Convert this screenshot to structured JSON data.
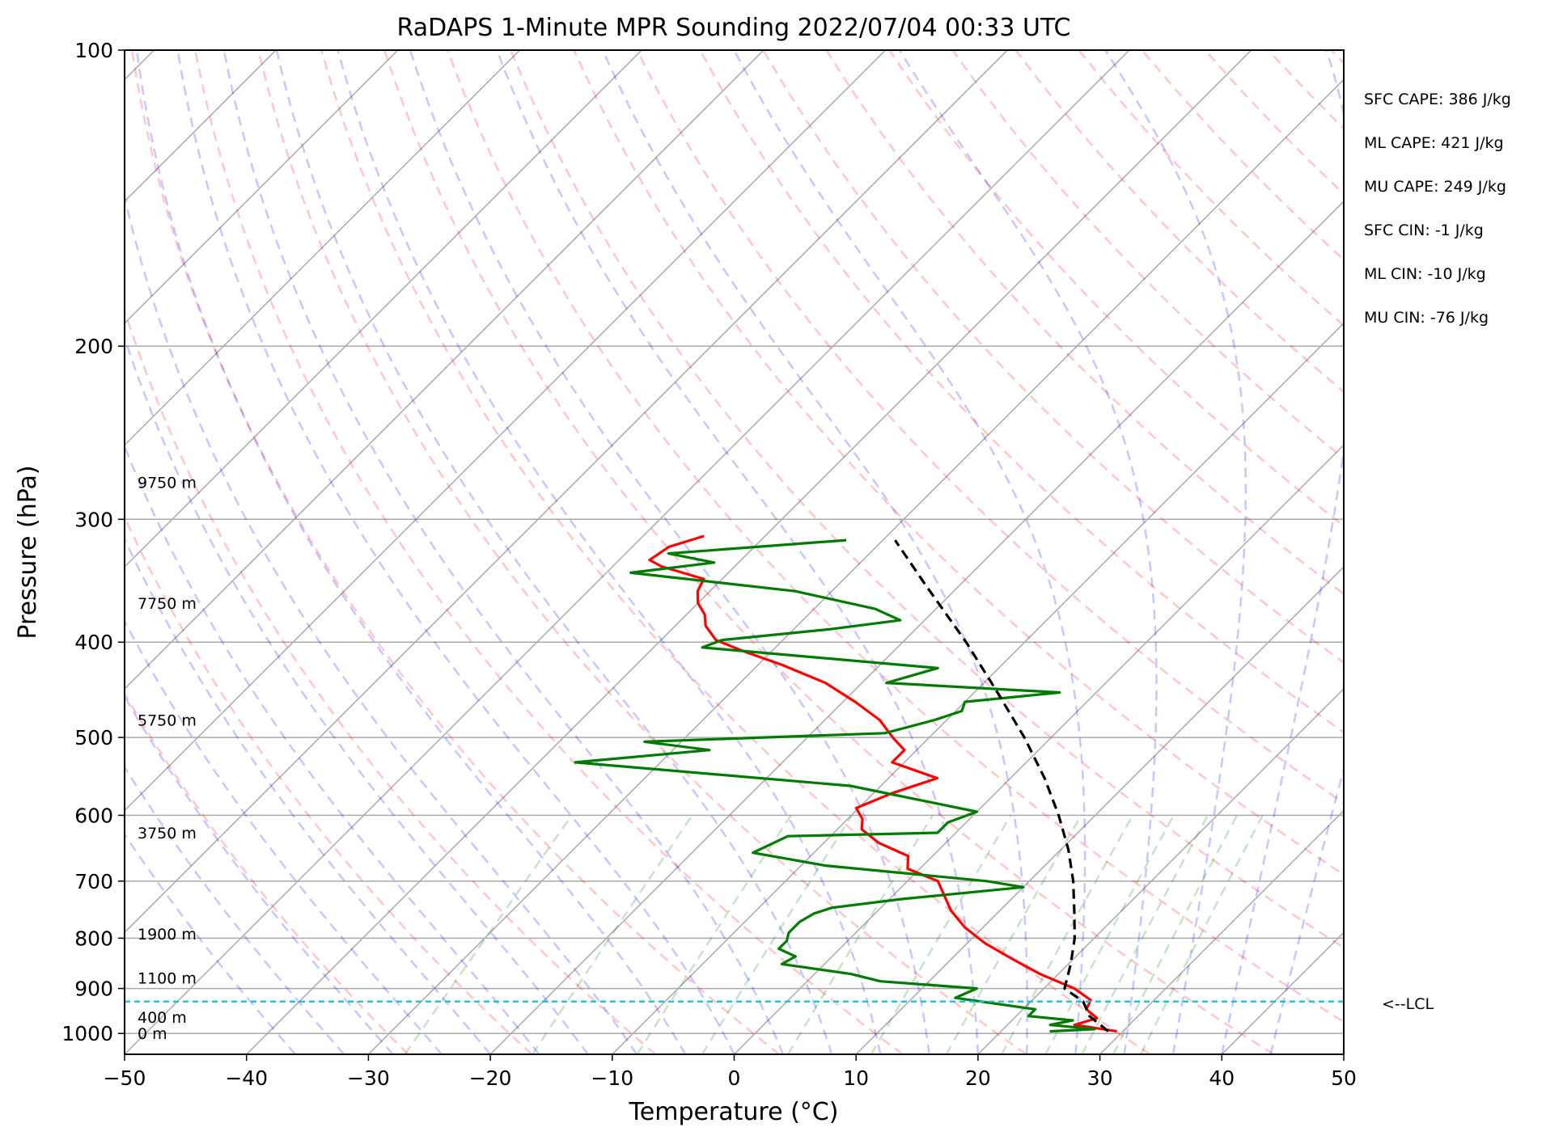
{
  "chart_data": {
    "type": "line",
    "title": "RaDAPS 1-Minute MPR Sounding 2022/07/04 00:33 UTC",
    "xlabel": "Temperature (°C)",
    "ylabel": "Pressure (hPa)",
    "xlim": [
      -50,
      50
    ],
    "ylim": [
      1050,
      100
    ],
    "y_scale": "log",
    "skew": "skew-T log-P",
    "grid": true,
    "x_ticks": [
      -50,
      -40,
      -30,
      -20,
      -10,
      0,
      10,
      20,
      30,
      40,
      50
    ],
    "x_tick_labels": [
      "−50",
      "−40",
      "−30",
      "−20",
      "−10",
      "0",
      "10",
      "20",
      "30",
      "40",
      "50"
    ],
    "y_ticks": [
      100,
      200,
      300,
      400,
      500,
      600,
      700,
      800,
      900,
      1000
    ],
    "y_tick_labels": [
      "100",
      "200",
      "300",
      "400",
      "500",
      "600",
      "700",
      "800",
      "900",
      "1000"
    ],
    "height_labels": [
      {
        "text": "9750 m",
        "pressure": 275
      },
      {
        "text": "7750 m",
        "pressure": 365
      },
      {
        "text": "5750 m",
        "pressure": 480
      },
      {
        "text": "3750 m",
        "pressure": 625
      },
      {
        "text": "1900 m",
        "pressure": 792
      },
      {
        "text": "1100 m",
        "pressure": 878
      },
      {
        "text": "400 m",
        "pressure": 962
      },
      {
        "text": "0 m",
        "pressure": 1000
      }
    ],
    "parameters": [
      "SFC CAPE: 386 J/kg",
      "ML CAPE: 421 J/kg",
      "MU CAPE: 249 J/kg",
      "SFC CIN: -1 J/kg",
      "ML CIN: -10 J/kg",
      "MU CIN: -76 J/kg"
    ],
    "lcl": {
      "pressure": 928,
      "label": "<--LCL"
    },
    "series": [
      {
        "role": "temperature",
        "color": "#ff0000",
        "points": [
          [
            29.5,
            995
          ],
          [
            25.5,
            980
          ],
          [
            26.8,
            965
          ],
          [
            25.2,
            945
          ],
          [
            24.8,
            925
          ],
          [
            22.5,
            900
          ],
          [
            18.5,
            870
          ],
          [
            15.0,
            840
          ],
          [
            11.5,
            810
          ],
          [
            8.5,
            780
          ],
          [
            6.0,
            750
          ],
          [
            2.5,
            700
          ],
          [
            -1.0,
            680
          ],
          [
            -2.0,
            660
          ],
          [
            -5.5,
            640
          ],
          [
            -8.0,
            620
          ],
          [
            -8.8,
            605
          ],
          [
            -10.2,
            590
          ],
          [
            -8.5,
            570
          ],
          [
            -6.0,
            550
          ],
          [
            -11.0,
            530
          ],
          [
            -11.0,
            515
          ],
          [
            -13.0,
            500
          ],
          [
            -15.5,
            480
          ],
          [
            -19.0,
            460
          ],
          [
            -23.0,
            440
          ],
          [
            -28.0,
            422
          ],
          [
            -32.5,
            408
          ],
          [
            -35.5,
            398
          ],
          [
            -37.5,
            385
          ],
          [
            -38.5,
            375
          ],
          [
            -40.0,
            365
          ],
          [
            -41.0,
            355
          ],
          [
            -41.5,
            345
          ],
          [
            -46.0,
            335
          ],
          [
            -47.5,
            330
          ],
          [
            -47.0,
            320
          ],
          [
            -45.0,
            312
          ]
        ]
      },
      {
        "role": "dewpoint",
        "color": "#007a00",
        "points": [
          [
            24.0,
            995
          ],
          [
            27.5,
            990
          ],
          [
            23.5,
            980
          ],
          [
            25.0,
            970
          ],
          [
            21.0,
            960
          ],
          [
            21.0,
            945
          ],
          [
            13.5,
            920
          ],
          [
            14.5,
            900
          ],
          [
            6.0,
            885
          ],
          [
            3.0,
            870
          ],
          [
            -3.5,
            850
          ],
          [
            -3.0,
            835
          ],
          [
            -5.0,
            820
          ],
          [
            -5.0,
            805
          ],
          [
            -5.5,
            790
          ],
          [
            -5.5,
            770
          ],
          [
            -5.0,
            755
          ],
          [
            -4.0,
            745
          ],
          [
            1.0,
            730
          ],
          [
            10.0,
            710
          ],
          [
            6.5,
            700
          ],
          [
            -8.0,
            675
          ],
          [
            -15.0,
            655
          ],
          [
            -13.5,
            630
          ],
          [
            -1.5,
            625
          ],
          [
            -1.5,
            610
          ],
          [
            0.0,
            595
          ],
          [
            -12.5,
            560
          ],
          [
            -37.0,
            530
          ],
          [
            -27.0,
            515
          ],
          [
            -33.0,
            505
          ],
          [
            -14.0,
            495
          ],
          [
            -11.0,
            480
          ],
          [
            -9.5,
            470
          ],
          [
            -10.0,
            460
          ],
          [
            -3.0,
            450
          ],
          [
            -18.0,
            440
          ],
          [
            -15.0,
            425
          ],
          [
            -36.0,
            405
          ],
          [
            -35.0,
            398
          ],
          [
            -27.0,
            388
          ],
          [
            -22.0,
            380
          ],
          [
            -25.0,
            370
          ],
          [
            -33.0,
            355
          ],
          [
            -48.0,
            340
          ],
          [
            -42.0,
            332
          ],
          [
            -46.5,
            325
          ],
          [
            -33.0,
            315
          ]
        ]
      },
      {
        "role": "parcel",
        "color": "#000000",
        "style": "dashed",
        "points": [
          [
            28.8,
            995
          ],
          [
            26.0,
            960
          ],
          [
            24.3,
            928
          ],
          [
            21.7,
            900
          ],
          [
            20.2,
            850
          ],
          [
            18.4,
            800
          ],
          [
            16.1,
            750
          ],
          [
            13.6,
            700
          ],
          [
            10.6,
            650
          ],
          [
            7.0,
            600
          ],
          [
            2.8,
            550
          ],
          [
            -2.2,
            500
          ],
          [
            -8.1,
            450
          ],
          [
            -14.8,
            400
          ],
          [
            -22.8,
            350
          ],
          [
            -29.0,
            315
          ]
        ]
      }
    ],
    "background_lines": {
      "dry_adiabats_color": "#ff0000",
      "moist_adiabats_color": "#0000ff",
      "mixing_ratio_color": "#008000",
      "isobars_color": "#aaaaaa",
      "isotherms_color": "#aaaaaa"
    }
  }
}
